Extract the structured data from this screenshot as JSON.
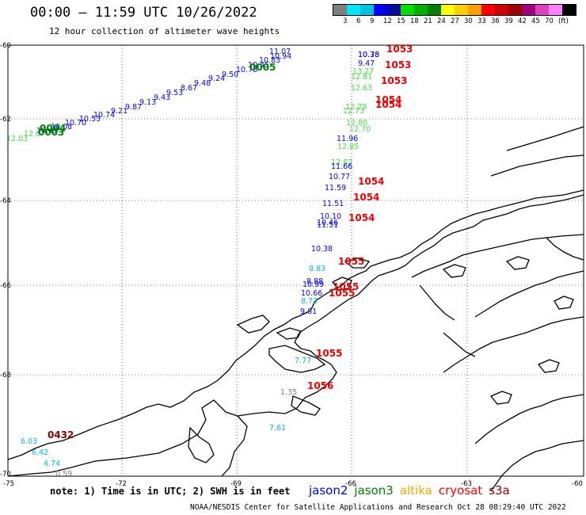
{
  "title": "00:00 – 11:59 UTC 10/26/2022",
  "subtitle": "12 hour collection of altimeter wave heights",
  "legend": {
    "colors": [
      "#7f7f7f",
      "#00e5ff",
      "#00c0e0",
      "#0000ff",
      "#0a0aa0",
      "#00e000",
      "#00b000",
      "#008000",
      "#ffff00",
      "#ffd000",
      "#ffa000",
      "#ff0000",
      "#d00000",
      "#a00000",
      "#a00080",
      "#e040c0",
      "#ff80ff",
      "#000000"
    ],
    "labels": [
      "3",
      "6",
      "9",
      "12",
      "15",
      "18",
      "21",
      "24",
      "27",
      "30",
      "33",
      "36",
      "39",
      "42",
      "45",
      "70",
      "(ft)"
    ]
  },
  "axes": {
    "lat_labels": [
      "-60",
      "-62",
      "-64",
      "-66",
      "-68",
      "-70"
    ],
    "lon_labels": [
      "-75",
      "-72",
      "-69",
      "-66",
      "-63",
      "-60"
    ]
  },
  "wave_heights": [
    {
      "text": "11.07",
      "color": "#0000ff"
    },
    {
      "text": "10.94",
      "color": "#0000ff"
    },
    {
      "text": "10.83",
      "color": "#0000ff"
    },
    {
      "text": "10.45",
      "color": "#0000ff"
    },
    {
      "text": "10.78",
      "color": "#0000ff"
    },
    {
      "text": "9.50",
      "color": "#0000ff"
    },
    {
      "text": "9.24",
      "color": "#0000ff"
    },
    {
      "text": "9.48",
      "color": "#0000ff"
    },
    {
      "text": "8.67",
      "color": "#0000ff"
    },
    {
      "text": "9.53",
      "color": "#0000ff"
    },
    {
      "text": "9.43",
      "color": "#0000ff"
    },
    {
      "text": "9.13",
      "color": "#0000ff"
    },
    {
      "text": "9.87",
      "color": "#0000ff"
    },
    {
      "text": "9.21",
      "color": "#0000ff"
    },
    {
      "text": "10.74",
      "color": "#0000ff"
    },
    {
      "text": "10.53",
      "color": "#0000ff"
    },
    {
      "text": "10.70",
      "color": "#0000ff"
    },
    {
      "text": "10.08",
      "color": "#0000ff"
    },
    {
      "text": "10.49",
      "color": "#0000ff"
    },
    {
      "text": "12.03",
      "color": "#44dd44"
    },
    {
      "text": "12.0",
      "color": "#44dd44"
    },
    {
      "text": "10.78",
      "color": "#0000ff"
    },
    {
      "text": "10.38",
      "color": "#0000ff"
    },
    {
      "text": "9.47",
      "color": "#0000ff"
    },
    {
      "text": "13.27",
      "color": "#44dd44"
    },
    {
      "text": "12.81",
      "color": "#44dd44"
    },
    {
      "text": "12.63",
      "color": "#44dd44"
    },
    {
      "text": "12.79",
      "color": "#44dd44"
    },
    {
      "text": "12.73",
      "color": "#44dd44"
    },
    {
      "text": "12.80",
      "color": "#44dd44"
    },
    {
      "text": "12.70",
      "color": "#44dd44"
    },
    {
      "text": "11.96",
      "color": "#0000ff"
    },
    {
      "text": "12.85",
      "color": "#44dd44"
    },
    {
      "text": "12.82",
      "color": "#44dd44"
    },
    {
      "text": "11.66",
      "color": "#0000ff"
    },
    {
      "text": "10.77",
      "color": "#0000ff"
    },
    {
      "text": "11.59",
      "color": "#0000ff"
    },
    {
      "text": "11.51",
      "color": "#0000ff"
    },
    {
      "text": "10.10",
      "color": "#0000ff"
    },
    {
      "text": "10.46",
      "color": "#0000ff"
    },
    {
      "text": "11.51",
      "color": "#0000ff"
    },
    {
      "text": "10.38",
      "color": "#0000ff"
    },
    {
      "text": "8.83",
      "color": "#00b8e6"
    },
    {
      "text": "8.88",
      "color": "#0000ff"
    },
    {
      "text": "10.99",
      "color": "#0000ff"
    },
    {
      "text": "10.66",
      "color": "#0000ff"
    },
    {
      "text": "8.73",
      "color": "#00b8e6"
    },
    {
      "text": "9.81",
      "color": "#0000ff"
    },
    {
      "text": "7.77",
      "color": "#00b8e6"
    },
    {
      "text": "1.35",
      "color": "#7f7f7f"
    },
    {
      "text": "7.61",
      "color": "#00b8e6"
    },
    {
      "text": "6.03",
      "color": "#00b8e6"
    },
    {
      "text": "6.42",
      "color": "#00b8e6"
    },
    {
      "text": "4.74",
      "color": "#00b8e6"
    },
    {
      "text": "0.59",
      "color": "#7f7f7f"
    }
  ],
  "pass_times": [
    {
      "text": "1053",
      "color": "#ee0000"
    },
    {
      "text": "1053",
      "color": "#ee0000"
    },
    {
      "text": "1053",
      "color": "#ee0000"
    },
    {
      "text": "1054",
      "color": "#ee0000"
    },
    {
      "text": "1054",
      "color": "#ee0000"
    },
    {
      "text": "1054",
      "color": "#ee0000"
    },
    {
      "text": "1054",
      "color": "#ee0000"
    },
    {
      "text": "1054",
      "color": "#ee0000"
    },
    {
      "text": "1055",
      "color": "#ee0000"
    },
    {
      "text": "1055",
      "color": "#ee0000"
    },
    {
      "text": "1055",
      "color": "#ee0000"
    },
    {
      "text": "1055",
      "color": "#ee0000"
    },
    {
      "text": "1056",
      "color": "#ee0000"
    },
    {
      "text": "0005",
      "color": "#008000"
    },
    {
      "text": "0004",
      "color": "#008000"
    },
    {
      "text": "0003",
      "color": "#008000"
    },
    {
      "text": "0432",
      "color": "#8b0000"
    }
  ],
  "note": "note: 1) Time is in UTC; 2) SWH is in feet",
  "satellites": [
    {
      "name": "jason2",
      "color": "#0000ff"
    },
    {
      "name": "jason3",
      "color": "#008000"
    },
    {
      "name": "altika",
      "color": "#ffa500"
    },
    {
      "name": "cryosat",
      "color": "#ff0000"
    },
    {
      "name": "s3a",
      "color": "#8b0000"
    }
  ],
  "credit": "NOAA/NESDIS Center for Satellite Applications and Research   Oct 28 08:29:40 UTC 2022"
}
